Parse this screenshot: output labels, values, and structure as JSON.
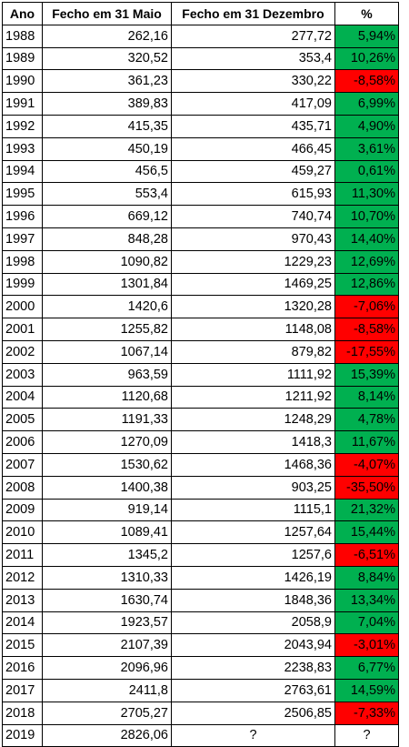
{
  "headers": [
    "Ano",
    "Fecho em 31 Maio",
    "Fecho em 31 Dezembro",
    "%"
  ],
  "colors": {
    "positive": "#00b050",
    "negative": "#ff0000"
  },
  "rows": [
    {
      "year": "1988",
      "may": "262,16",
      "dec": "277,72",
      "pct": "5,94%",
      "sign": "pos"
    },
    {
      "year": "1989",
      "may": "320,52",
      "dec": "353,4",
      "pct": "10,26%",
      "sign": "pos"
    },
    {
      "year": "1990",
      "may": "361,23",
      "dec": "330,22",
      "pct": "-8,58%",
      "sign": "neg"
    },
    {
      "year": "1991",
      "may": "389,83",
      "dec": "417,09",
      "pct": "6,99%",
      "sign": "pos"
    },
    {
      "year": "1992",
      "may": "415,35",
      "dec": "435,71",
      "pct": "4,90%",
      "sign": "pos"
    },
    {
      "year": "1993",
      "may": "450,19",
      "dec": "466,45",
      "pct": "3,61%",
      "sign": "pos"
    },
    {
      "year": "1994",
      "may": "456,5",
      "dec": "459,27",
      "pct": "0,61%",
      "sign": "pos"
    },
    {
      "year": "1995",
      "may": "553,4",
      "dec": "615,93",
      "pct": "11,30%",
      "sign": "pos"
    },
    {
      "year": "1996",
      "may": "669,12",
      "dec": "740,74",
      "pct": "10,70%",
      "sign": "pos"
    },
    {
      "year": "1997",
      "may": "848,28",
      "dec": "970,43",
      "pct": "14,40%",
      "sign": "pos"
    },
    {
      "year": "1998",
      "may": "1090,82",
      "dec": "1229,23",
      "pct": "12,69%",
      "sign": "pos"
    },
    {
      "year": "1999",
      "may": "1301,84",
      "dec": "1469,25",
      "pct": "12,86%",
      "sign": "pos"
    },
    {
      "year": "2000",
      "may": "1420,6",
      "dec": "1320,28",
      "pct": "-7,06%",
      "sign": "neg"
    },
    {
      "year": "2001",
      "may": "1255,82",
      "dec": "1148,08",
      "pct": "-8,58%",
      "sign": "neg"
    },
    {
      "year": "2002",
      "may": "1067,14",
      "dec": "879,82",
      "pct": "-17,55%",
      "sign": "neg"
    },
    {
      "year": "2003",
      "may": "963,59",
      "dec": "1111,92",
      "pct": "15,39%",
      "sign": "pos"
    },
    {
      "year": "2004",
      "may": "1120,68",
      "dec": "1211,92",
      "pct": "8,14%",
      "sign": "pos"
    },
    {
      "year": "2005",
      "may": "1191,33",
      "dec": "1248,29",
      "pct": "4,78%",
      "sign": "pos"
    },
    {
      "year": "2006",
      "may": "1270,09",
      "dec": "1418,3",
      "pct": "11,67%",
      "sign": "pos"
    },
    {
      "year": "2007",
      "may": "1530,62",
      "dec": "1468,36",
      "pct": "-4,07%",
      "sign": "neg"
    },
    {
      "year": "2008",
      "may": "1400,38",
      "dec": "903,25",
      "pct": "-35,50%",
      "sign": "neg"
    },
    {
      "year": "2009",
      "may": "919,14",
      "dec": "1115,1",
      "pct": "21,32%",
      "sign": "pos"
    },
    {
      "year": "2010",
      "may": "1089,41",
      "dec": "1257,64",
      "pct": "15,44%",
      "sign": "pos"
    },
    {
      "year": "2011",
      "may": "1345,2",
      "dec": "1257,6",
      "pct": "-6,51%",
      "sign": "neg"
    },
    {
      "year": "2012",
      "may": "1310,33",
      "dec": "1426,19",
      "pct": "8,84%",
      "sign": "pos"
    },
    {
      "year": "2013",
      "may": "1630,74",
      "dec": "1848,36",
      "pct": "13,34%",
      "sign": "pos"
    },
    {
      "year": "2014",
      "may": "1923,57",
      "dec": "2058,9",
      "pct": "7,04%",
      "sign": "pos"
    },
    {
      "year": "2015",
      "may": "2107,39",
      "dec": "2043,94",
      "pct": "-3,01%",
      "sign": "neg"
    },
    {
      "year": "2016",
      "may": "2096,96",
      "dec": "2238,83",
      "pct": "6,77%",
      "sign": "pos"
    },
    {
      "year": "2017",
      "may": "2411,8",
      "dec": "2763,61",
      "pct": "14,59%",
      "sign": "pos"
    },
    {
      "year": "2018",
      "may": "2705,27",
      "dec": "2506,85",
      "pct": "-7,33%",
      "sign": "neg"
    },
    {
      "year": "2019",
      "may": "2826,06",
      "dec": "?",
      "pct": "?",
      "sign": "none"
    }
  ]
}
